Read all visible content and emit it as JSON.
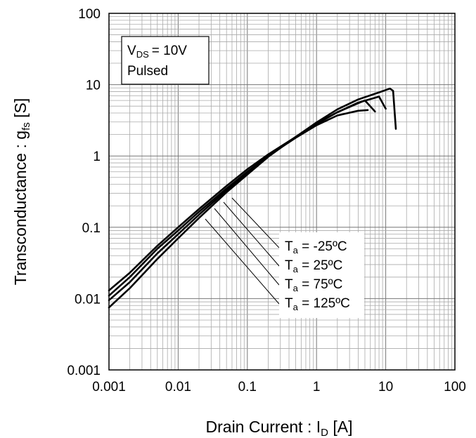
{
  "chart_data": {
    "type": "line",
    "x_scale": "log",
    "y_scale": "log",
    "xlim": [
      0.001,
      100
    ],
    "ylim": [
      0.001,
      100
    ],
    "grid": true,
    "xlabel": {
      "main": "Drain Current : I",
      "sub": "D",
      "unit": " [A]"
    },
    "ylabel": {
      "main": "Transconductance : g",
      "sub": "fs",
      "unit": " [S]"
    },
    "xticks": [
      "0.001",
      "0.01",
      "0.1",
      "1",
      "10",
      "100"
    ],
    "yticks": [
      "0.001",
      "0.01",
      "0.1",
      "1",
      "10",
      "100"
    ],
    "conditions": {
      "line1": {
        "sym": "V",
        "sub": "DS",
        "rest": "= 10V"
      },
      "line2": "Pulsed"
    },
    "series": [
      {
        "name": "Ta = -25ºC",
        "label": {
          "sym": "T",
          "sub": "a",
          "rest": " = -25ºC"
        },
        "x": [
          0.001,
          0.002,
          0.005,
          0.01,
          0.02,
          0.05,
          0.1,
          0.2,
          0.5,
          1,
          2,
          4,
          5,
          7
        ],
        "y": [
          0.013,
          0.023,
          0.055,
          0.1,
          0.18,
          0.38,
          0.65,
          1.05,
          1.85,
          2.8,
          4.1,
          5.5,
          6.0,
          4.2
        ]
      },
      {
        "name": "Ta = 25ºC",
        "label": {
          "sym": "T",
          "sub": "a",
          "rest": " = 25ºC"
        },
        "x": [
          0.001,
          0.002,
          0.005,
          0.01,
          0.02,
          0.05,
          0.1,
          0.2,
          0.5,
          1,
          2,
          4,
          5.5
        ],
        "y": [
          0.011,
          0.02,
          0.05,
          0.09,
          0.165,
          0.35,
          0.6,
          1.0,
          1.8,
          2.7,
          3.7,
          4.3,
          4.4
        ]
      },
      {
        "name": "Ta = 75ºC",
        "label": {
          "sym": "T",
          "sub": "a",
          "rest": " = 75ºC"
        },
        "x": [
          0.001,
          0.002,
          0.005,
          0.01,
          0.02,
          0.05,
          0.1,
          0.2,
          0.5,
          1,
          2,
          4,
          8,
          10
        ],
        "y": [
          0.0095,
          0.017,
          0.043,
          0.08,
          0.15,
          0.33,
          0.58,
          1.0,
          1.85,
          2.85,
          4.1,
          5.6,
          6.8,
          4.6
        ]
      },
      {
        "name": "Ta = 125ºC",
        "label": {
          "sym": "T",
          "sub": "a",
          "rest": " = 125ºC"
        },
        "x": [
          0.001,
          0.002,
          0.005,
          0.01,
          0.02,
          0.05,
          0.1,
          0.2,
          0.5,
          1,
          2,
          4,
          8,
          11.5,
          12.8,
          14
        ],
        "y": [
          0.0075,
          0.014,
          0.036,
          0.07,
          0.135,
          0.31,
          0.55,
          0.97,
          1.85,
          2.95,
          4.5,
          6.2,
          7.8,
          8.8,
          8.2,
          2.4
        ]
      }
    ]
  }
}
